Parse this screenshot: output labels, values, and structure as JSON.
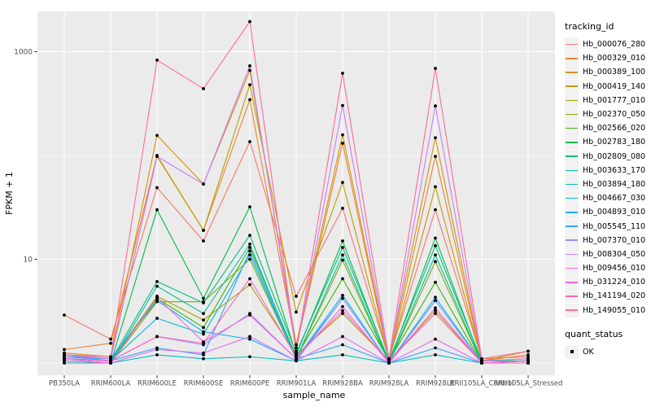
{
  "figure": {
    "background": "#FFFFFF",
    "panel_background": "#EBEBEB",
    "grid_color": "#FFFFFF",
    "tick_color": "#333333",
    "tick_label_color": "#4D4D4D",
    "axis_title_color": "#000000",
    "point_color": "#000000"
  },
  "legend": {
    "tracking_title": "tracking_id",
    "quant_title": "quant_status",
    "quant_items": [
      {
        "label": "OK",
        "marker": "black-square"
      }
    ]
  },
  "chart_data": {
    "type": "line",
    "title": "",
    "xlabel": "sample_name",
    "ylabel": "FPKM + 1",
    "y_scale": "log10",
    "ylim": [
      0.9,
      2400
    ],
    "grid": "on",
    "legend_position": "right",
    "y_ticks": [
      {
        "value": 10,
        "label": "10"
      },
      {
        "value": 1000,
        "label": "1000"
      }
    ],
    "y_minor_gridlines": [
      1,
      100
    ],
    "categories": [
      "PB350LA",
      "RRIM600LA",
      "RRIM600LE",
      "RRIM600SE",
      "RRIM600PE",
      "RRIM901LA",
      "RRIM928BA",
      "RRIM928LA",
      "RRIM928LE",
      "RRII105LA_Control",
      "RRII105LA_Stressed"
    ],
    "series": [
      {
        "name": "Hb_000076_280",
        "color": "#F8766D",
        "values": [
          2.9,
          1.7,
          49,
          15,
          136,
          4.4,
          31,
          1.1,
          30,
          1.1,
          1.15
        ]
      },
      {
        "name": "Hb_000329_010",
        "color": "#EA8331",
        "values": [
          1.35,
          1.55,
          100,
          19,
          345,
          1.4,
          131,
          1.05,
          98,
          1.05,
          1.2
        ]
      },
      {
        "name": "Hb_000389_100",
        "color": "#D89000",
        "values": [
          1.25,
          1.15,
          156,
          53,
          660,
          1.5,
          158,
          1.1,
          148,
          1.05,
          1.1
        ]
      },
      {
        "name": "Hb_000419_140",
        "color": "#C09B00",
        "values": [
          1.2,
          1.1,
          98,
          19,
          480,
          3.1,
          55,
          1.05,
          50,
          1.05,
          1.3
        ]
      },
      {
        "name": "Hb_001777_010",
        "color": "#A3A500",
        "values": [
          1.1,
          1.05,
          4.4,
          2.6,
          5.7,
          1.2,
          3.0,
          1.05,
          3.2,
          1.0,
          1.05
        ]
      },
      {
        "name": "Hb_002370_050",
        "color": "#7CAE00",
        "values": [
          1.05,
          1.0,
          3.9,
          3.9,
          10,
          1.1,
          9.8,
          1.0,
          9.5,
          1.0,
          1.0
        ]
      },
      {
        "name": "Hb_002566_020",
        "color": "#39B600",
        "values": [
          1.1,
          1.05,
          4.2,
          2.2,
          13,
          1.15,
          6.5,
          1.05,
          6.0,
          1.0,
          1.05
        ]
      },
      {
        "name": "Hb_002783_180",
        "color": "#00BB4E",
        "values": [
          1.05,
          1.0,
          30,
          4.2,
          32,
          1.2,
          15,
          1.0,
          16,
          1.0,
          1.0
        ]
      },
      {
        "name": "Hb_002809_080",
        "color": "#00BF7D",
        "values": [
          1.1,
          1.05,
          6.1,
          3.8,
          17,
          1.25,
          13,
          1.05,
          13.5,
          1.05,
          1.05
        ]
      },
      {
        "name": "Hb_003633_170",
        "color": "#00C1A3",
        "values": [
          1.05,
          1.0,
          5.5,
          3.0,
          14,
          1.1,
          11,
          1.0,
          11,
          1.0,
          1.0
        ]
      },
      {
        "name": "Hb_003894_180",
        "color": "#00BFC4",
        "values": [
          1.0,
          1.0,
          1.2,
          1.1,
          1.15,
          1.05,
          1.2,
          1.0,
          1.2,
          1.0,
          1.0
        ]
      },
      {
        "name": "Hb_004667_030",
        "color": "#00BAE0",
        "values": [
          1.1,
          1.05,
          2.7,
          1.9,
          11,
          1.1,
          4.5,
          1.0,
          4.3,
          1.0,
          1.05
        ]
      },
      {
        "name": "Hb_004893_010",
        "color": "#00B0F6",
        "values": [
          1.15,
          1.1,
          4.0,
          2.0,
          1.7,
          1.05,
          4.2,
          1.0,
          4.0,
          1.0,
          1.0
        ]
      },
      {
        "name": "Hb_005545_110",
        "color": "#35A2FF",
        "values": [
          1.2,
          1.05,
          1.4,
          1.2,
          12,
          1.1,
          1.5,
          1.0,
          1.4,
          1.0,
          1.0
        ]
      },
      {
        "name": "Hb_007370_010",
        "color": "#9590FF",
        "values": [
          1.15,
          1.05,
          1.8,
          1.5,
          3.0,
          1.1,
          4.2,
          1.0,
          4.0,
          1.0,
          1.05
        ]
      },
      {
        "name": "Hb_008304_050",
        "color": "#C77CFF",
        "values": [
          1.2,
          1.1,
          98,
          53,
          730,
          1.3,
          303,
          1.05,
          300,
          1.05,
          1.1
        ]
      },
      {
        "name": "Hb_009456_010",
        "color": "#E76BF3",
        "values": [
          1.1,
          1.0,
          1.35,
          1.25,
          1.8,
          1.05,
          1.8,
          1.0,
          1.7,
          1.0,
          1.0
        ]
      },
      {
        "name": "Hb_031224_010",
        "color": "#FA62DB",
        "values": [
          1.05,
          1.0,
          4.3,
          1.6,
          2.9,
          1.1,
          3.5,
          1.0,
          3.4,
          1.0,
          1.0
        ]
      },
      {
        "name": "Hb_141194_020",
        "color": "#FF62BC",
        "values": [
          1.1,
          1.05,
          1.8,
          1.55,
          6.5,
          1.15,
          3.2,
          1.05,
          3.0,
          1.0,
          1.05
        ]
      },
      {
        "name": "Hb_149055_010",
        "color": "#FF6A98",
        "values": [
          1.2,
          1.15,
          830,
          440,
          1950,
          1.3,
          620,
          1.1,
          690,
          1.1,
          1.3
        ]
      }
    ]
  }
}
